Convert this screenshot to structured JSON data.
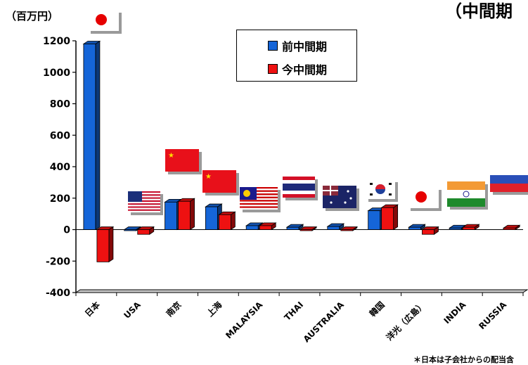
{
  "unit_label": "（百万円）",
  "title_partial": "（中間期",
  "footnote": "＊日本は子会社からの配当含",
  "legend": {
    "series": [
      {
        "name": "前中間期",
        "color": "#1565d8"
      },
      {
        "name": "今中間期",
        "color": "#ee1111"
      }
    ]
  },
  "flag_icons": [
    "japan-flag-icon",
    "usa-flag-icon",
    "china-flag-icon",
    "china-flag-icon",
    "malaysia-flag-icon",
    "thailand-flag-icon",
    "australia-flag-icon",
    "korea-flag-icon",
    "japan-flag-icon",
    "india-flag-icon",
    "russia-flag-icon"
  ],
  "chart_data": {
    "type": "bar",
    "categories": [
      "日本",
      "USA",
      "南京",
      "上海",
      "MALAYSIA",
      "THAI",
      "AUSTRALIA",
      "韓国",
      "洋光（広島）",
      "INDIA",
      "RUSSIA"
    ],
    "series": [
      {
        "name": "前中間期",
        "values": [
          1180,
          -5,
          175,
          145,
          25,
          15,
          20,
          120,
          15,
          10,
          null
        ]
      },
      {
        "name": "今中間期",
        "values": [
          -205,
          -30,
          180,
          95,
          25,
          0,
          -5,
          140,
          -30,
          15,
          10
        ]
      }
    ],
    "ylim": [
      -400,
      1200
    ],
    "yticks": [
      -400,
      -200,
      0,
      200,
      400,
      600,
      800,
      1000,
      1200
    ],
    "xlabel": "",
    "ylabel": "",
    "grid": false,
    "legend_position": "top-center",
    "colors": {
      "prev": "#1565d8",
      "curr": "#ee1111"
    }
  }
}
